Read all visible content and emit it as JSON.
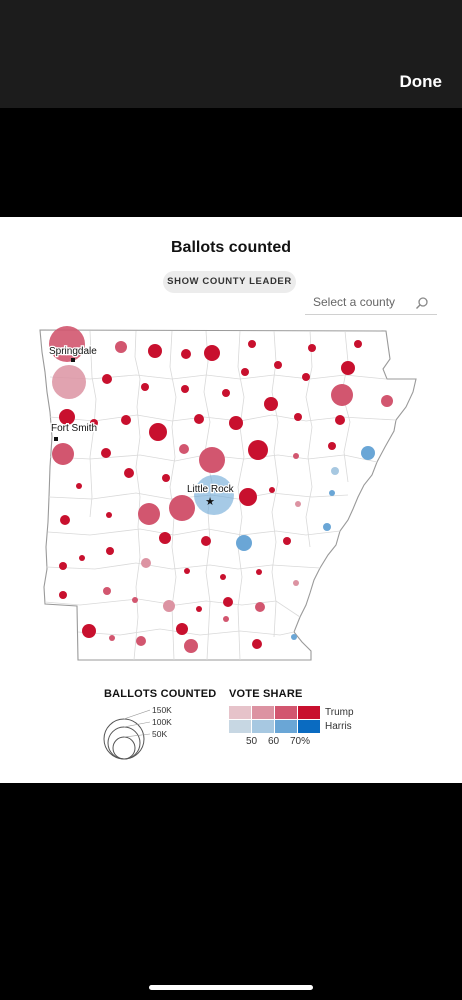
{
  "viewer": {
    "done_label": "Done"
  },
  "graphic": {
    "title": "Ballots counted",
    "toggle_label": "SHOW COUNTY LEADER",
    "search": {
      "placeholder": "Select a county",
      "value": ""
    }
  },
  "cities": [
    {
      "name": "Springdale"
    },
    {
      "name": "Fort Smith"
    },
    {
      "name": "Little Rock"
    }
  ],
  "legend": {
    "ballots_title": "BALLOTS COUNTED",
    "size_labels": [
      "150K",
      "100K",
      "50K"
    ],
    "vote_title": "VOTE SHARE",
    "vote_ticks": [
      "50",
      "60",
      "70%"
    ],
    "trump_label": "Trump",
    "harris_label": "Harris"
  },
  "colors": {
    "trump": [
      "#e6c3ca",
      "#dc93a2",
      "#d2566f",
      "#c8102e"
    ],
    "harris": [
      "#c7d7e3",
      "#a7c8e1",
      "#6aa6d6",
      "#0a6bc1"
    ]
  }
}
